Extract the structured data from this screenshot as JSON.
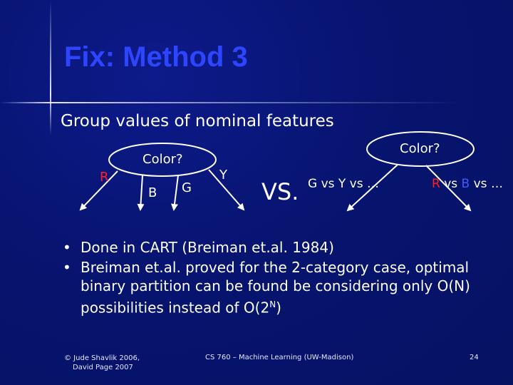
{
  "slide": {
    "title": "Fix: Method 3",
    "subtitle": "Group values of nominal features"
  },
  "diagram": {
    "left_tree": {
      "root_label": "Color?",
      "branches": [
        "R",
        "B",
        "G",
        "Y"
      ]
    },
    "vs_label": "VS.",
    "right_tree": {
      "root_label": "Color?",
      "left_branch_label": "G vs Y vs …",
      "right_branch": {
        "r": "R",
        "vs1": " vs ",
        "b": "B",
        "vs2": " vs …"
      }
    }
  },
  "bullets": [
    {
      "text": "Done in CART (Breiman et.al. 1984)"
    },
    {
      "text_before_sup": "Breiman et.al. proved for the 2-category case, optimal binary partition can be found be considering only O(N) possibilities instead of O(2",
      "sup": "N",
      "text_after_sup": ")"
    }
  ],
  "footer": {
    "copyright_line1": "© Jude Shavlik 2006,",
    "copyright_line2": "David Page 2007",
    "course": "CS 760 – Machine Learning (UW-Madison)",
    "page": "24"
  },
  "colors": {
    "title": "#2d45ff",
    "highlight_red": "#ff2020",
    "highlight_blue": "#3f5cff",
    "background": "#071470"
  }
}
